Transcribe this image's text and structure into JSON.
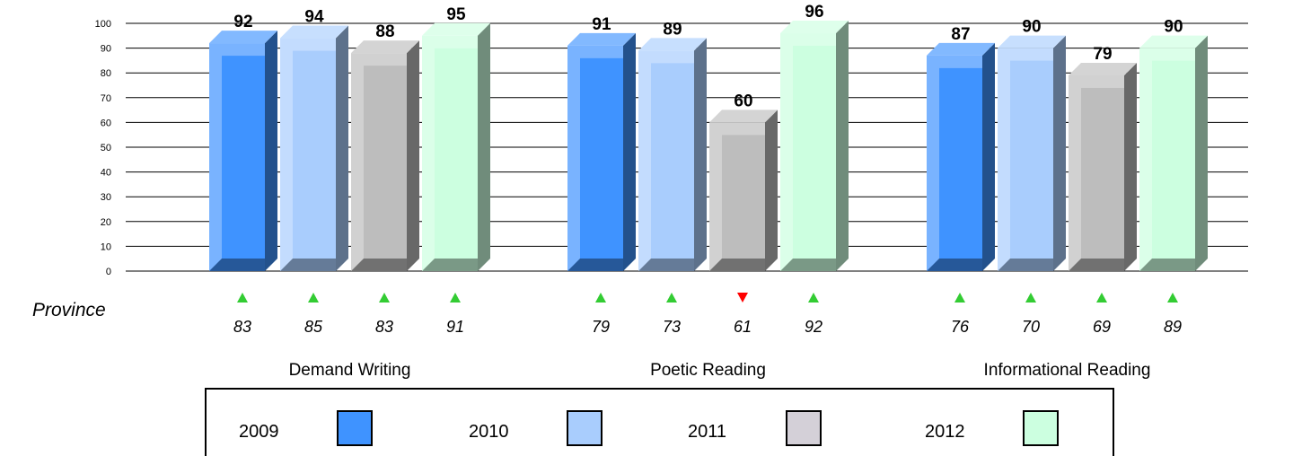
{
  "chart_data": {
    "type": "bar",
    "categories": [
      "Demand Writing",
      "Poetic Reading",
      "Informational Reading"
    ],
    "series": [
      {
        "name": "2009",
        "values": [
          92,
          91,
          87
        ],
        "color": "#3f93ff",
        "province": [
          83,
          79,
          76
        ],
        "trend": [
          "up",
          "up",
          "up"
        ]
      },
      {
        "name": "2010",
        "values": [
          94,
          89,
          90
        ],
        "color": "#a9cdfd",
        "province": [
          85,
          73,
          70
        ],
        "trend": [
          "up",
          "up",
          "up"
        ]
      },
      {
        "name": "2011",
        "values": [
          88,
          60,
          79
        ],
        "color": "#bdbdbd",
        "province": [
          83,
          61,
          69
        ],
        "trend": [
          "up",
          "down",
          "up"
        ]
      },
      {
        "name": "2012",
        "values": [
          95,
          96,
          90
        ],
        "color": "#ccffe0",
        "province": [
          91,
          92,
          89
        ],
        "trend": [
          "up",
          "up",
          "up"
        ]
      }
    ],
    "ylim": [
      0,
      100
    ],
    "yticks": [
      "0",
      "10",
      "20",
      "30",
      "40",
      "50",
      "60",
      "70",
      "80",
      "90",
      "100"
    ],
    "row_label": "Province",
    "legend_position": "bottom",
    "trend_colors": {
      "up": "#33cc33",
      "down": "#ff0000"
    }
  }
}
